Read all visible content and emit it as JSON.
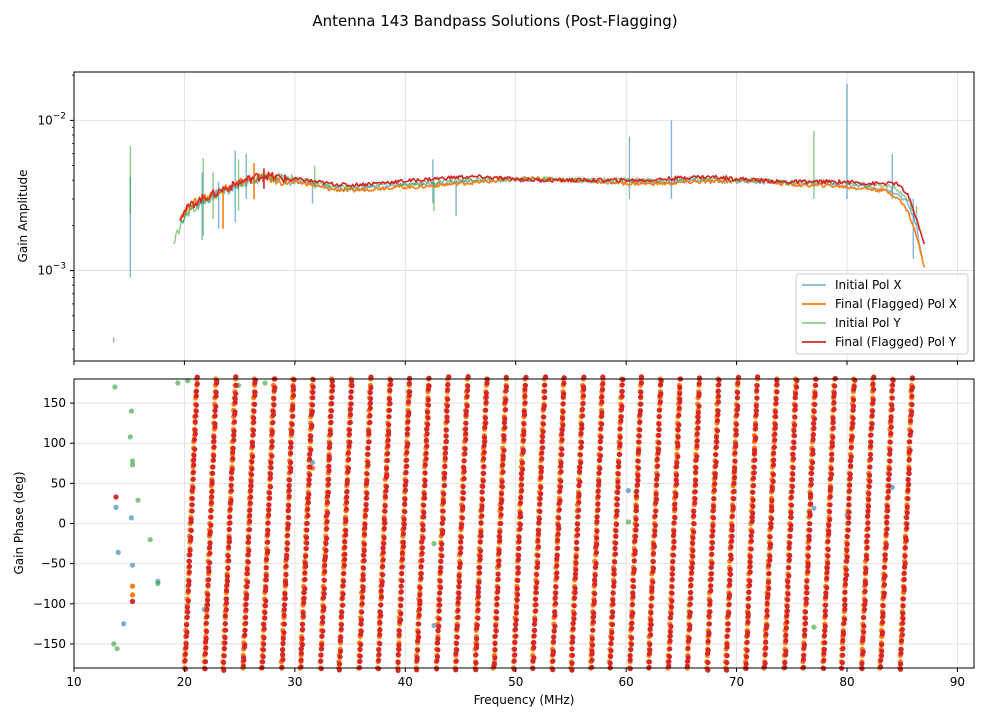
{
  "title": "Antenna 143 Bandpass Solutions (Post-Flagging)",
  "colors": {
    "initial_x": "#1f77b4",
    "final_x": "#ff7f0e",
    "initial_y": "#2ca02c",
    "final_y": "#d62728",
    "grid": "#dddddd",
    "axis": "#000000"
  },
  "chart_data": [
    {
      "type": "line",
      "panel": "amplitude",
      "ylabel": "Gain Amplitude",
      "yscale": "log",
      "xlim": [
        10,
        91.5
      ],
      "ylim": [
        0.00025,
        0.021
      ],
      "yticks": [
        {
          "value": 0.01,
          "base": "10",
          "exp": "−2"
        },
        {
          "value": 0.001,
          "base": "10",
          "exp": "−3"
        }
      ],
      "grid": true,
      "legend": "bottom-right",
      "series": [
        {
          "name": "Initial Pol X",
          "key": "initial_x",
          "color": "#1f77b4",
          "points": [
            [
              19.6,
              0.0021
            ],
            [
              20.5,
              0.0026
            ],
            [
              21.5,
              0.0029
            ],
            [
              22.5,
              0.0031
            ],
            [
              23.5,
              0.0034
            ],
            [
              24.5,
              0.0036
            ],
            [
              25.5,
              0.0039
            ],
            [
              26.5,
              0.0041
            ],
            [
              27.5,
              0.0042
            ],
            [
              29,
              0.004
            ],
            [
              31,
              0.0039
            ],
            [
              33,
              0.0036
            ],
            [
              35,
              0.0035
            ],
            [
              37,
              0.0036
            ],
            [
              39,
              0.0037
            ],
            [
              41,
              0.0037
            ],
            [
              43,
              0.0038
            ],
            [
              45,
              0.0039
            ],
            [
              47,
              0.004
            ],
            [
              49,
              0.004
            ],
            [
              52,
              0.004
            ],
            [
              55,
              0.004
            ],
            [
              58,
              0.0039
            ],
            [
              60,
              0.0039
            ],
            [
              62,
              0.0039
            ],
            [
              64,
              0.0039
            ],
            [
              66,
              0.004
            ],
            [
              68,
              0.004
            ],
            [
              70,
              0.0039
            ],
            [
              72,
              0.0039
            ],
            [
              74,
              0.0039
            ],
            [
              76,
              0.0038
            ],
            [
              78,
              0.0038
            ],
            [
              80,
              0.0037
            ],
            [
              82,
              0.0036
            ],
            [
              83.5,
              0.0035
            ],
            [
              84.5,
              0.0033
            ],
            [
              85.5,
              0.0028
            ],
            [
              86.3,
              0.002
            ],
            [
              86.8,
              0.0012
            ]
          ],
          "spikes": [
            [
              15.1,
              0.0009,
              0.0042
            ],
            [
              21.6,
              0.0016,
              0.0045
            ],
            [
              23.1,
              0.0019,
              0.0039
            ],
            [
              24.6,
              0.0021,
              0.0063
            ],
            [
              25.6,
              0.003,
              0.006
            ],
            [
              31.6,
              0.0028,
              0.004
            ],
            [
              42.5,
              0.0028,
              0.0055
            ],
            [
              44.6,
              0.0023,
              0.004
            ],
            [
              60.3,
              0.003,
              0.0078
            ],
            [
              64.1,
              0.003,
              0.01
            ],
            [
              80.0,
              0.003,
              0.0175
            ],
            [
              84.1,
              0.003,
              0.006
            ],
            [
              86.0,
              0.0012,
              0.003
            ]
          ]
        },
        {
          "name": "Final (Flagged) Pol X",
          "key": "final_x",
          "color": "#ff7f0e",
          "points": [
            [
              19.6,
              0.0023
            ],
            [
              20.5,
              0.0027
            ],
            [
              21.5,
              0.003
            ],
            [
              22.5,
              0.0032
            ],
            [
              23.5,
              0.0035
            ],
            [
              24.5,
              0.0037
            ],
            [
              25.5,
              0.004
            ],
            [
              26.5,
              0.0042
            ],
            [
              27.5,
              0.0041
            ],
            [
              29,
              0.0039
            ],
            [
              31,
              0.0038
            ],
            [
              33,
              0.0035
            ],
            [
              35,
              0.0034
            ],
            [
              37,
              0.0035
            ],
            [
              39,
              0.0036
            ],
            [
              41,
              0.0036
            ],
            [
              43,
              0.0037
            ],
            [
              45,
              0.0038
            ],
            [
              47,
              0.0039
            ],
            [
              49,
              0.004
            ],
            [
              52,
              0.0041
            ],
            [
              55,
              0.004
            ],
            [
              58,
              0.0039
            ],
            [
              60,
              0.0038
            ],
            [
              62,
              0.0038
            ],
            [
              64,
              0.0038
            ],
            [
              66,
              0.0039
            ],
            [
              68,
              0.0039
            ],
            [
              70,
              0.004
            ],
            [
              72,
              0.004
            ],
            [
              74,
              0.0038
            ],
            [
              76,
              0.0037
            ],
            [
              78,
              0.0037
            ],
            [
              80,
              0.0036
            ],
            [
              82,
              0.0035
            ],
            [
              83.5,
              0.0034
            ],
            [
              84.5,
              0.0031
            ],
            [
              85.5,
              0.0025
            ],
            [
              86.3,
              0.0017
            ],
            [
              87.0,
              0.00105
            ]
          ],
          "spikes": [
            [
              23.5,
              0.0019,
              0.0035
            ],
            [
              26.3,
              0.003,
              0.0052
            ]
          ]
        },
        {
          "name": "Initial Pol Y",
          "key": "initial_y",
          "color": "#2ca02c",
          "points": [
            [
              19.0,
              0.0015
            ],
            [
              19.6,
              0.002
            ],
            [
              20.5,
              0.0025
            ],
            [
              21.5,
              0.0028
            ],
            [
              22.5,
              0.0031
            ],
            [
              23.5,
              0.0033
            ],
            [
              24.5,
              0.0036
            ],
            [
              25.5,
              0.0039
            ],
            [
              26.5,
              0.0041
            ],
            [
              27.5,
              0.0043
            ],
            [
              29,
              0.0041
            ],
            [
              31,
              0.004
            ],
            [
              33,
              0.0037
            ],
            [
              35,
              0.0036
            ],
            [
              37,
              0.0037
            ],
            [
              39,
              0.0038
            ],
            [
              41,
              0.0038
            ],
            [
              43,
              0.0039
            ],
            [
              45,
              0.004
            ],
            [
              47,
              0.0041
            ],
            [
              49,
              0.0041
            ],
            [
              52,
              0.0041
            ],
            [
              55,
              0.004
            ],
            [
              58,
              0.004
            ],
            [
              60,
              0.004
            ],
            [
              62,
              0.004
            ],
            [
              64,
              0.004
            ],
            [
              66,
              0.0041
            ],
            [
              68,
              0.0041
            ],
            [
              70,
              0.004
            ],
            [
              72,
              0.004
            ],
            [
              74,
              0.0039
            ],
            [
              76,
              0.0039
            ],
            [
              78,
              0.0039
            ],
            [
              80,
              0.0038
            ],
            [
              82,
              0.0037
            ],
            [
              83.5,
              0.0037
            ],
            [
              84.5,
              0.0035
            ],
            [
              85.5,
              0.003
            ],
            [
              86.3,
              0.0022
            ],
            [
              86.8,
              0.0017
            ]
          ],
          "spikes": [
            [
              13.6,
              0.00033,
              0.00036
            ],
            [
              15.1,
              0.0024,
              0.0068
            ],
            [
              21.7,
              0.0017,
              0.0056
            ],
            [
              22.6,
              0.0022,
              0.0045
            ],
            [
              24.9,
              0.0025,
              0.0055
            ],
            [
              31.8,
              0.0035,
              0.005
            ],
            [
              42.6,
              0.0025,
              0.004
            ],
            [
              77.0,
              0.003,
              0.0085
            ],
            [
              86.3,
              0.002,
              0.0027
            ]
          ]
        },
        {
          "name": "Final (Flagged) Pol Y",
          "key": "final_y",
          "color": "#d62728",
          "points": [
            [
              19.6,
              0.0023
            ],
            [
              20.5,
              0.0027
            ],
            [
              21.5,
              0.003
            ],
            [
              22.5,
              0.0032
            ],
            [
              23.5,
              0.0035
            ],
            [
              24.5,
              0.0037
            ],
            [
              25.5,
              0.004
            ],
            [
              26.5,
              0.0042
            ],
            [
              27.5,
              0.0043
            ],
            [
              29,
              0.0041
            ],
            [
              31,
              0.004
            ],
            [
              33,
              0.0038
            ],
            [
              35,
              0.0037
            ],
            [
              37,
              0.0038
            ],
            [
              39,
              0.0039
            ],
            [
              41,
              0.004
            ],
            [
              43,
              0.0041
            ],
            [
              45,
              0.0042
            ],
            [
              47,
              0.0042
            ],
            [
              49,
              0.0041
            ],
            [
              52,
              0.004
            ],
            [
              55,
              0.004
            ],
            [
              58,
              0.004
            ],
            [
              60,
              0.004
            ],
            [
              62,
              0.004
            ],
            [
              64,
              0.0041
            ],
            [
              66,
              0.0042
            ],
            [
              68,
              0.0042
            ],
            [
              70,
              0.0041
            ],
            [
              72,
              0.004
            ],
            [
              74,
              0.0039
            ],
            [
              76,
              0.0039
            ],
            [
              78,
              0.0039
            ],
            [
              80,
              0.0039
            ],
            [
              82,
              0.0038
            ],
            [
              83.5,
              0.0038
            ],
            [
              84.5,
              0.0038
            ],
            [
              85.5,
              0.0032
            ],
            [
              86.3,
              0.0022
            ],
            [
              87.0,
              0.0015
            ]
          ],
          "spikes": [
            [
              27.2,
              0.0035,
              0.0048
            ]
          ]
        }
      ]
    },
    {
      "type": "scatter",
      "panel": "phase",
      "xlabel": "Frequency (MHz)",
      "ylabel": "Gain Phase (deg)",
      "xlim": [
        10,
        91.5
      ],
      "ylim": [
        -180,
        180
      ],
      "xticks": [
        10,
        20,
        30,
        40,
        50,
        60,
        70,
        80,
        90
      ],
      "yticks": [
        150,
        100,
        50,
        0,
        -50,
        -100,
        -150
      ],
      "grid": true,
      "wrap_start_mhz": [
        20.0,
        21.8,
        23.5,
        25.3,
        27.0,
        28.8,
        30.5,
        32.3,
        34.0,
        35.8,
        37.5,
        39.3,
        41.0,
        42.8,
        44.5,
        46.3,
        48.0,
        49.8,
        51.5,
        53.3,
        55.0,
        56.8,
        58.5,
        60.3,
        62.0,
        63.8,
        65.5,
        67.3,
        69.0,
        70.8,
        72.5,
        74.3,
        76.0,
        77.8,
        79.5,
        81.3,
        83.0,
        84.8
      ],
      "wrap_range_mhz": [
        19.6,
        87.0
      ],
      "stray_points": [
        {
          "key": "initial_y",
          "x": 13.7,
          "y": 170
        },
        {
          "key": "initial_y",
          "x": 15.2,
          "y": 140
        },
        {
          "key": "initial_y",
          "x": 15.1,
          "y": 108
        },
        {
          "key": "initial_y",
          "x": 15.3,
          "y": 78
        },
        {
          "key": "initial_y",
          "x": 15.3,
          "y": 73
        },
        {
          "key": "initial_y",
          "x": 15.8,
          "y": 29
        },
        {
          "key": "initial_y",
          "x": 16.9,
          "y": -20
        },
        {
          "key": "initial_y",
          "x": 17.6,
          "y": -75
        },
        {
          "key": "initial_y",
          "x": 13.6,
          "y": -150
        },
        {
          "key": "initial_y",
          "x": 13.9,
          "y": -156
        },
        {
          "key": "initial_y",
          "x": 60.2,
          "y": 2
        },
        {
          "key": "initial_y",
          "x": 77.0,
          "y": -129
        },
        {
          "key": "initial_y",
          "x": 42.6,
          "y": -25
        },
        {
          "key": "initial_y",
          "x": 19.4,
          "y": 175
        },
        {
          "key": "initial_y",
          "x": 20.3,
          "y": 178
        },
        {
          "key": "initial_y",
          "x": 24.9,
          "y": 172
        },
        {
          "key": "initial_y",
          "x": 27.3,
          "y": 175
        },
        {
          "key": "initial_x",
          "x": 13.8,
          "y": 20
        },
        {
          "key": "initial_x",
          "x": 14.0,
          "y": -36
        },
        {
          "key": "initial_x",
          "x": 14.5,
          "y": -125
        },
        {
          "key": "initial_x",
          "x": 15.2,
          "y": 7
        },
        {
          "key": "initial_x",
          "x": 15.3,
          "y": -52
        },
        {
          "key": "initial_x",
          "x": 17.6,
          "y": -72
        },
        {
          "key": "initial_x",
          "x": 21.8,
          "y": -107
        },
        {
          "key": "initial_x",
          "x": 42.6,
          "y": -127
        },
        {
          "key": "initial_x",
          "x": 31.6,
          "y": 76
        },
        {
          "key": "initial_x",
          "x": 60.2,
          "y": 41
        },
        {
          "key": "initial_x",
          "x": 77.0,
          "y": 19
        },
        {
          "key": "initial_x",
          "x": 80.0,
          "y": 11
        },
        {
          "key": "initial_x",
          "x": 84.1,
          "y": 45
        },
        {
          "key": "final_x",
          "x": 15.3,
          "y": -78
        },
        {
          "key": "final_x",
          "x": 15.3,
          "y": -89
        },
        {
          "key": "final_x",
          "x": 31.6,
          "y": 69
        },
        {
          "key": "final_y",
          "x": 13.8,
          "y": 33
        },
        {
          "key": "final_y",
          "x": 15.3,
          "y": -97
        }
      ]
    }
  ]
}
